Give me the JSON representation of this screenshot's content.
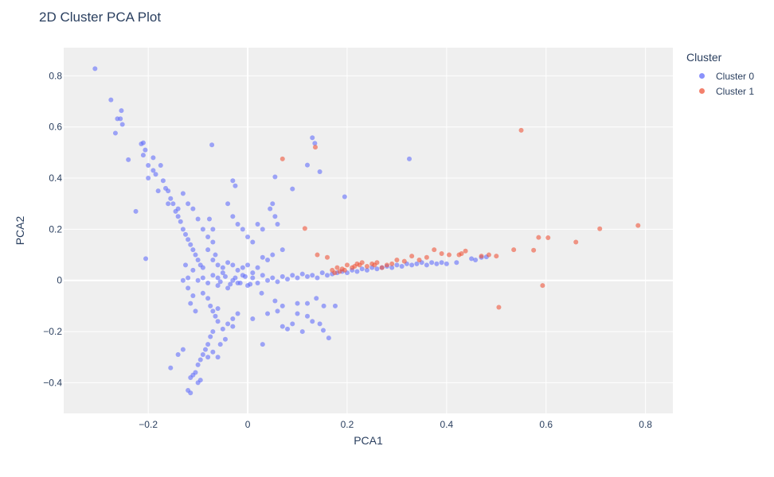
{
  "chart_data": {
    "type": "scatter",
    "title": "2D Cluster PCA Plot",
    "xlabel": "PCA1",
    "ylabel": "PCA2",
    "xlim": [
      -0.37,
      0.855
    ],
    "ylim": [
      -0.52,
      0.91
    ],
    "x_ticks": [
      -0.2,
      0,
      0.2,
      0.4,
      0.6,
      0.8
    ],
    "x_tick_labels": [
      "−0.2",
      "0",
      "0.2",
      "0.4",
      "0.6",
      "0.8"
    ],
    "y_ticks": [
      -0.4,
      -0.2,
      0,
      0.2,
      0.4,
      0.6,
      0.8
    ],
    "y_tick_labels": [
      "−0.4",
      "−0.2",
      "0",
      "0.2",
      "0.4",
      "0.6",
      "0.8"
    ],
    "grid": true,
    "legend": {
      "title": "Cluster",
      "position": "top-right"
    },
    "series": [
      {
        "name": "Cluster 0",
        "color": "#636efa",
        "points": [
          [
            -0.307,
            0.828
          ],
          [
            -0.275,
            0.706
          ],
          [
            -0.262,
            0.632
          ],
          [
            -0.256,
            0.632
          ],
          [
            -0.254,
            0.664
          ],
          [
            -0.266,
            0.576
          ],
          [
            -0.252,
            0.61
          ],
          [
            -0.24,
            0.472
          ],
          [
            -0.214,
            0.534
          ],
          [
            -0.21,
            0.538
          ],
          [
            -0.206,
            0.51
          ],
          [
            -0.21,
            0.49
          ],
          [
            -0.2,
            0.45
          ],
          [
            -0.19,
            0.48
          ],
          [
            -0.185,
            0.415
          ],
          [
            -0.19,
            0.43
          ],
          [
            -0.175,
            0.45
          ],
          [
            -0.17,
            0.39
          ],
          [
            -0.165,
            0.36
          ],
          [
            -0.16,
            0.35
          ],
          [
            -0.155,
            0.32
          ],
          [
            -0.15,
            0.3
          ],
          [
            -0.145,
            0.27
          ],
          [
            -0.14,
            0.25
          ],
          [
            -0.135,
            0.23
          ],
          [
            -0.13,
            0.2
          ],
          [
            -0.125,
            0.18
          ],
          [
            -0.12,
            0.16
          ],
          [
            -0.115,
            0.14
          ],
          [
            -0.11,
            0.12
          ],
          [
            -0.105,
            0.1
          ],
          [
            -0.1,
            0.08
          ],
          [
            -0.095,
            0.06
          ],
          [
            -0.09,
            0.05
          ],
          [
            -0.2,
            0.4
          ],
          [
            -0.18,
            0.35
          ],
          [
            -0.16,
            0.3
          ],
          [
            -0.14,
            0.28
          ],
          [
            -0.13,
            0.34
          ],
          [
            -0.12,
            0.3
          ],
          [
            -0.11,
            0.28
          ],
          [
            -0.1,
            0.24
          ],
          [
            -0.09,
            0.2
          ],
          [
            -0.08,
            0.17
          ],
          [
            -0.072,
            0.53
          ],
          [
            -0.08,
            0.12
          ],
          [
            -0.07,
            0.08
          ],
          [
            -0.06,
            0.06
          ],
          [
            -0.077,
            0.24
          ],
          [
            -0.07,
            0.2
          ],
          [
            -0.07,
            0.15
          ],
          [
            -0.065,
            0.1
          ],
          [
            -0.225,
            0.27
          ],
          [
            -0.205,
            0.085
          ],
          [
            -0.03,
            0.39
          ],
          [
            -0.025,
            0.37
          ],
          [
            -0.04,
            0.3
          ],
          [
            -0.03,
            0.25
          ],
          [
            -0.02,
            0.22
          ],
          [
            -0.01,
            0.2
          ],
          [
            0.0,
            0.17
          ],
          [
            0.01,
            0.15
          ],
          [
            0.02,
            0.22
          ],
          [
            0.03,
            0.2
          ],
          [
            0.045,
            0.28
          ],
          [
            0.05,
            0.3
          ],
          [
            0.055,
            0.25
          ],
          [
            0.06,
            0.22
          ],
          [
            0.07,
            0.12
          ],
          [
            0.05,
            0.1
          ],
          [
            0.03,
            0.09
          ],
          [
            0.04,
            0.08
          ],
          [
            0.055,
            0.405
          ],
          [
            0.09,
            0.358
          ],
          [
            0.12,
            0.451
          ],
          [
            0.13,
            0.558
          ],
          [
            0.135,
            0.536
          ],
          [
            0.325,
            0.475
          ],
          [
            0.195,
            0.327
          ],
          [
            0.145,
            0.425
          ],
          [
            -0.1,
            0.0
          ],
          [
            -0.09,
            0.01
          ],
          [
            -0.08,
            -0.01
          ],
          [
            -0.07,
            0.02
          ],
          [
            -0.06,
            -0.02
          ],
          [
            -0.05,
            0.03
          ],
          [
            -0.04,
            -0.03
          ],
          [
            -0.03,
            0.0
          ],
          [
            -0.02,
            -0.01
          ],
          [
            -0.01,
            0.02
          ],
          [
            0.0,
            -0.02
          ],
          [
            0.01,
            0.01
          ],
          [
            0.02,
            -0.01
          ],
          [
            0.03,
            0.02
          ],
          [
            0.04,
            0.0
          ],
          [
            0.05,
            0.01
          ],
          [
            0.06,
            -0.005
          ],
          [
            0.07,
            0.015
          ],
          [
            0.08,
            0.005
          ],
          [
            0.09,
            0.02
          ],
          [
            0.1,
            0.01
          ],
          [
            0.11,
            0.025
          ],
          [
            0.12,
            0.015
          ],
          [
            0.13,
            0.02
          ],
          [
            0.14,
            0.01
          ],
          [
            0.15,
            0.03
          ],
          [
            0.16,
            0.02
          ],
          [
            0.17,
            0.025
          ],
          [
            0.18,
            0.03
          ],
          [
            0.19,
            0.035
          ],
          [
            0.2,
            0.03
          ],
          [
            0.21,
            0.04
          ],
          [
            0.22,
            0.035
          ],
          [
            0.23,
            0.045
          ],
          [
            0.24,
            0.04
          ],
          [
            0.25,
            0.05
          ],
          [
            0.26,
            0.045
          ],
          [
            0.27,
            0.05
          ],
          [
            0.28,
            0.055
          ],
          [
            0.29,
            0.05
          ],
          [
            0.3,
            0.06
          ],
          [
            0.31,
            0.055
          ],
          [
            0.32,
            0.065
          ],
          [
            0.33,
            0.06
          ],
          [
            0.34,
            0.065
          ],
          [
            0.35,
            0.07
          ],
          [
            0.36,
            0.06
          ],
          [
            0.37,
            0.07
          ],
          [
            0.38,
            0.065
          ],
          [
            0.39,
            0.07
          ],
          [
            0.4,
            0.065
          ],
          [
            0.42,
            0.07
          ],
          [
            0.45,
            0.085
          ],
          [
            0.458,
            0.08
          ],
          [
            0.47,
            0.09
          ],
          [
            0.48,
            0.092
          ],
          [
            -0.09,
            -0.05
          ],
          [
            -0.08,
            -0.07
          ],
          [
            -0.075,
            -0.1
          ],
          [
            -0.07,
            -0.12
          ],
          [
            -0.065,
            -0.14
          ],
          [
            -0.06,
            -0.11
          ],
          [
            -0.06,
            -0.16
          ],
          [
            -0.07,
            -0.2
          ],
          [
            -0.075,
            -0.22
          ],
          [
            -0.08,
            -0.25
          ],
          [
            -0.085,
            -0.27
          ],
          [
            -0.08,
            -0.3
          ],
          [
            -0.09,
            -0.29
          ],
          [
            -0.095,
            -0.31
          ],
          [
            -0.1,
            -0.33
          ],
          [
            -0.105,
            -0.36
          ],
          [
            -0.11,
            -0.37
          ],
          [
            -0.115,
            -0.38
          ],
          [
            -0.12,
            -0.43
          ],
          [
            -0.115,
            -0.44
          ],
          [
            -0.1,
            -0.4
          ],
          [
            -0.095,
            -0.39
          ],
          [
            -0.155,
            -0.342
          ],
          [
            -0.14,
            -0.29
          ],
          [
            -0.13,
            -0.27
          ],
          [
            -0.05,
            -0.19
          ],
          [
            -0.04,
            -0.17
          ],
          [
            -0.03,
            -0.15
          ],
          [
            -0.02,
            -0.13
          ],
          [
            -0.045,
            -0.23
          ],
          [
            -0.055,
            -0.25
          ],
          [
            -0.07,
            -0.28
          ],
          [
            -0.06,
            -0.3
          ],
          [
            -0.03,
            -0.18
          ],
          [
            0.01,
            -0.15
          ],
          [
            0.03,
            -0.25
          ],
          [
            0.04,
            -0.13
          ],
          [
            0.06,
            -0.12
          ],
          [
            0.07,
            -0.18
          ],
          [
            0.08,
            -0.19
          ],
          [
            0.09,
            -0.17
          ],
          [
            0.1,
            -0.13
          ],
          [
            0.11,
            -0.2
          ],
          [
            0.12,
            -0.14
          ],
          [
            0.13,
            -0.16
          ],
          [
            0.145,
            -0.17
          ],
          [
            0.163,
            -0.225
          ],
          [
            0.152,
            -0.195
          ],
          [
            0.055,
            -0.08
          ],
          [
            0.07,
            -0.1
          ],
          [
            0.1,
            -0.09
          ],
          [
            0.12,
            -0.09
          ],
          [
            0.138,
            -0.07
          ],
          [
            0.153,
            -0.1
          ],
          [
            0.176,
            -0.1
          ],
          [
            0.028,
            -0.05
          ],
          [
            -0.05,
            0.05
          ],
          [
            -0.04,
            0.07
          ],
          [
            -0.03,
            0.06
          ],
          [
            -0.02,
            0.04
          ],
          [
            -0.01,
            0.05
          ],
          [
            0.0,
            0.06
          ],
          [
            0.01,
            0.03
          ],
          [
            0.02,
            0.05
          ],
          [
            -0.06,
            0.01
          ],
          [
            -0.055,
            -0.005
          ],
          [
            -0.045,
            0.015
          ],
          [
            -0.035,
            -0.015
          ],
          [
            -0.025,
            0.01
          ],
          [
            -0.015,
            -0.01
          ],
          [
            -0.005,
            0.015
          ],
          [
            0.005,
            -0.015
          ],
          [
            -0.11,
            -0.06
          ],
          [
            -0.11,
            0.04
          ],
          [
            -0.12,
            0.01
          ],
          [
            -0.12,
            -0.03
          ],
          [
            -0.13,
            0.0
          ],
          [
            -0.125,
            0.06
          ],
          [
            -0.115,
            -0.09
          ],
          [
            -0.105,
            -0.12
          ]
        ]
      },
      {
        "name": "Cluster 1",
        "color": "#ef553b",
        "points": [
          [
            0.07,
            0.475
          ],
          [
            0.136,
            0.521
          ],
          [
            0.115,
            0.203
          ],
          [
            0.14,
            0.1
          ],
          [
            0.16,
            0.09
          ],
          [
            0.17,
            0.04
          ],
          [
            0.175,
            0.03
          ],
          [
            0.18,
            0.05
          ],
          [
            0.185,
            0.035
          ],
          [
            0.19,
            0.045
          ],
          [
            0.195,
            0.04
          ],
          [
            0.2,
            0.06
          ],
          [
            0.21,
            0.05
          ],
          [
            0.215,
            0.055
          ],
          [
            0.22,
            0.065
          ],
          [
            0.225,
            0.06
          ],
          [
            0.23,
            0.07
          ],
          [
            0.24,
            0.055
          ],
          [
            0.25,
            0.065
          ],
          [
            0.255,
            0.06
          ],
          [
            0.26,
            0.07
          ],
          [
            0.27,
            0.05
          ],
          [
            0.28,
            0.06
          ],
          [
            0.29,
            0.065
          ],
          [
            0.3,
            0.08
          ],
          [
            0.315,
            0.075
          ],
          [
            0.33,
            0.095
          ],
          [
            0.345,
            0.08
          ],
          [
            0.36,
            0.09
          ],
          [
            0.375,
            0.12
          ],
          [
            0.39,
            0.105
          ],
          [
            0.405,
            0.1
          ],
          [
            0.425,
            0.1
          ],
          [
            0.43,
            0.105
          ],
          [
            0.438,
            0.115
          ],
          [
            0.47,
            0.095
          ],
          [
            0.485,
            0.1
          ],
          [
            0.5,
            0.095
          ],
          [
            0.535,
            0.12
          ],
          [
            0.55,
            0.587
          ],
          [
            0.575,
            0.118
          ],
          [
            0.585,
            0.168
          ],
          [
            0.604,
            0.167
          ],
          [
            0.593,
            -0.02
          ],
          [
            0.505,
            -0.105
          ],
          [
            0.66,
            0.15
          ],
          [
            0.708,
            0.202
          ],
          [
            0.785,
            0.215
          ]
        ]
      }
    ]
  }
}
